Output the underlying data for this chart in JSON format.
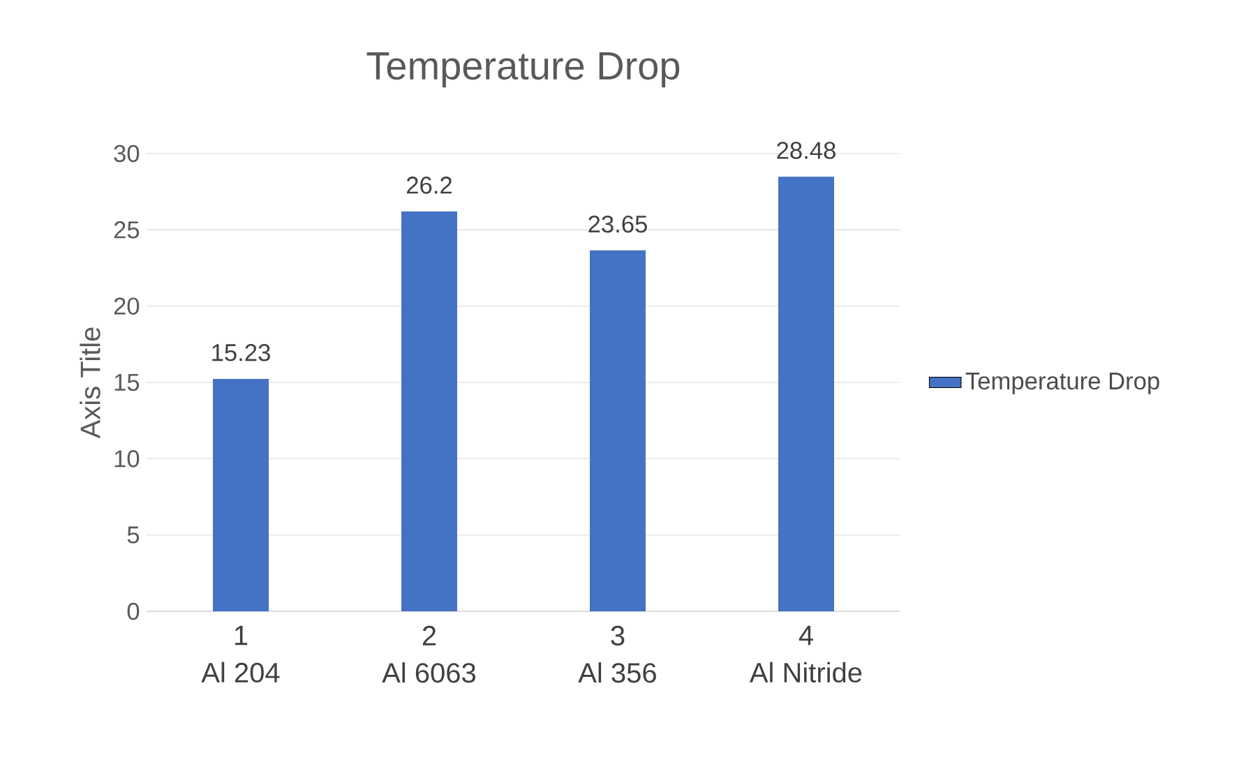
{
  "chart_data": {
    "type": "bar",
    "title": "Temperature Drop",
    "ylabel": "Axis Title",
    "categories": [
      "Al 204",
      "Al 6063",
      "Al 356",
      "Al Nitride"
    ],
    "annotations": [
      "1",
      "2",
      "3",
      "4"
    ],
    "series": [
      {
        "name": "Temperature Drop",
        "color": "#4472c4",
        "values": [
          15.23,
          26.2,
          23.65,
          28.48
        ]
      }
    ],
    "ylim": [
      0,
      30
    ],
    "yticks": [
      0,
      5,
      10,
      15,
      20,
      25,
      30
    ],
    "grid": "y",
    "legend": "right",
    "data_labels": true
  }
}
